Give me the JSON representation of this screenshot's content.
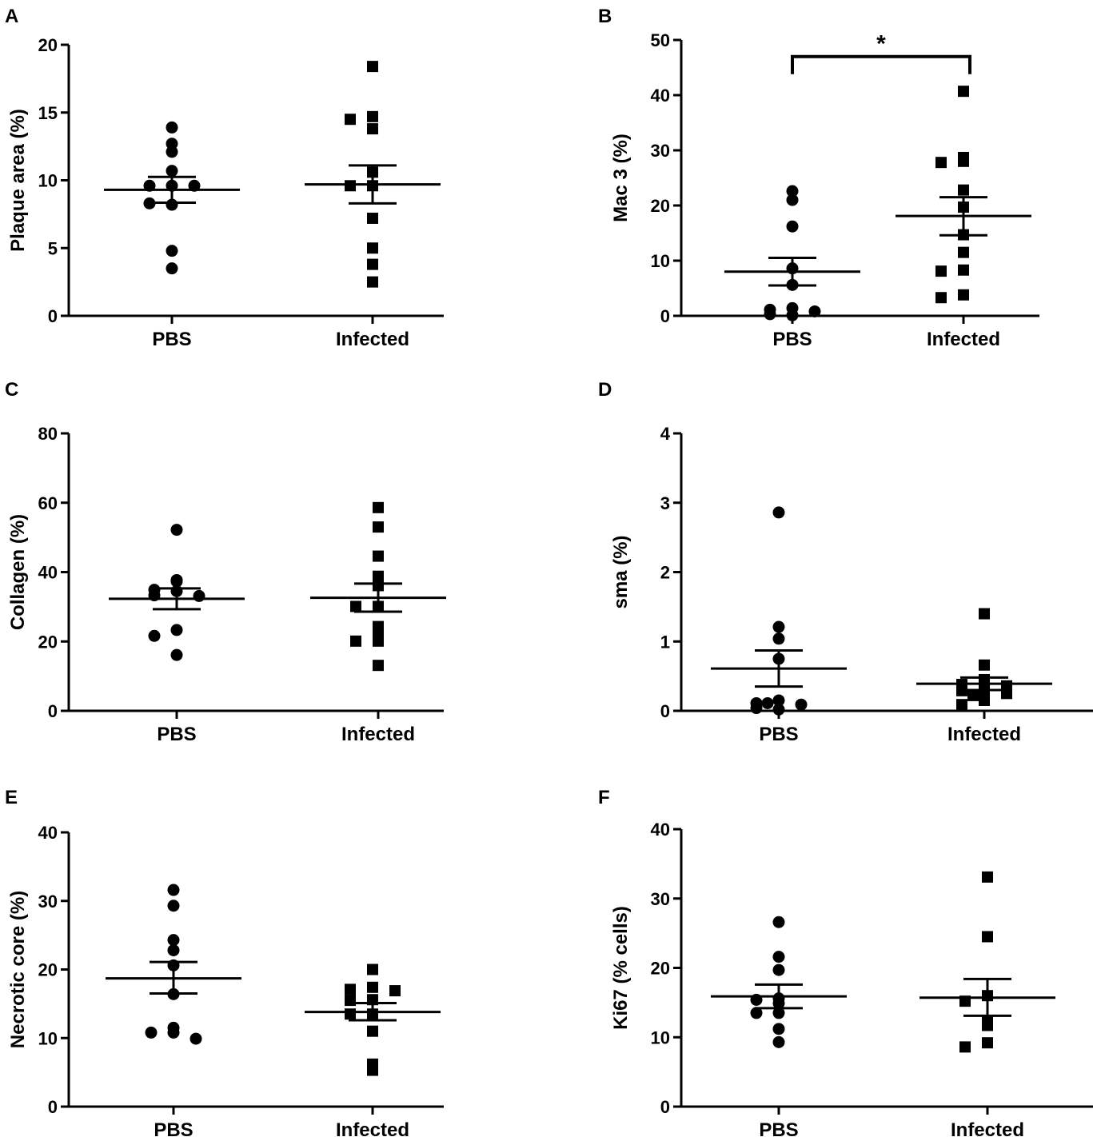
{
  "chart_data": [
    {
      "panel": "A",
      "type": "scatter",
      "ylabel": "Plaque area (%)",
      "ylim": [
        0,
        20
      ],
      "yticks": [
        0,
        5,
        10,
        15,
        20
      ],
      "categories": [
        "PBS",
        "Infected"
      ],
      "groups": [
        {
          "name": "PBS",
          "marker": "circle",
          "mean": 9.3,
          "sem_low": 8.35,
          "sem_high": 10.25,
          "points": [
            13.9,
            12.7,
            12.1,
            10.7,
            9.6,
            9.6,
            9.6,
            8.2,
            8.3,
            4.8,
            3.5
          ]
        },
        {
          "name": "Infected",
          "marker": "square",
          "mean": 9.7,
          "sem_low": 8.3,
          "sem_high": 11.1,
          "points": [
            18.4,
            14.7,
            14.5,
            13.8,
            10.6,
            9.6,
            9.6,
            7.2,
            5.0,
            3.8,
            2.5
          ]
        }
      ],
      "significance": null
    },
    {
      "panel": "B",
      "type": "scatter",
      "ylabel": "Mac 3 (%)",
      "ylim": [
        0,
        50
      ],
      "yticks": [
        0,
        10,
        20,
        30,
        40,
        50
      ],
      "categories": [
        "PBS",
        "Infected"
      ],
      "groups": [
        {
          "name": "PBS",
          "marker": "circle",
          "mean": 8.0,
          "sem_low": 5.5,
          "sem_high": 10.5,
          "points": [
            22.6,
            21.0,
            16.2,
            8.6,
            5.6,
            1.4,
            1.1,
            0.8,
            0.1,
            0.3
          ]
        },
        {
          "name": "Infected",
          "marker": "square",
          "mean": 18.1,
          "sem_low": 14.6,
          "sem_high": 21.5,
          "points": [
            40.7,
            28.7,
            28.0,
            27.8,
            22.8,
            19.7,
            14.7,
            11.5,
            8.3,
            8.1,
            3.8,
            3.3
          ]
        }
      ],
      "significance": {
        "label": "*",
        "from": "PBS",
        "to": "Infected",
        "y": 47.0
      }
    },
    {
      "panel": "C",
      "type": "scatter",
      "ylabel": "Collagen (%)",
      "ylim": [
        0,
        80
      ],
      "yticks": [
        0,
        20,
        40,
        60,
        80
      ],
      "categories": [
        "PBS",
        "Infected"
      ],
      "groups": [
        {
          "name": "PBS",
          "marker": "circle",
          "mean": 32.3,
          "sem_low": 29.3,
          "sem_high": 35.3,
          "points": [
            52.2,
            37.7,
            37.3,
            34.9,
            34.5,
            33.3,
            33.1,
            23.3,
            21.6,
            16.1
          ]
        },
        {
          "name": "Infected",
          "marker": "square",
          "mean": 32.6,
          "sem_low": 28.6,
          "sem_high": 36.7,
          "points": [
            58.6,
            53.0,
            44.6,
            38.8,
            36.1,
            30.1,
            30.1,
            24.3,
            22.7,
            20.1,
            20.1,
            13.1
          ]
        }
      ],
      "significance": null
    },
    {
      "panel": "D",
      "type": "scatter",
      "ylabel": "sma (%)",
      "ylim": [
        0,
        4
      ],
      "yticks": [
        0,
        1,
        2,
        3,
        4
      ],
      "categories": [
        "PBS",
        "Infected"
      ],
      "groups": [
        {
          "name": "PBS",
          "marker": "circle",
          "mean": 0.61,
          "sem_low": 0.35,
          "sem_high": 0.87,
          "points": [
            2.86,
            1.21,
            1.04,
            0.75,
            0.15,
            0.11,
            0.09,
            0.11,
            0.02,
            0.04
          ]
        },
        {
          "name": "Infected",
          "marker": "square",
          "mean": 0.39,
          "sem_low": 0.3,
          "sem_high": 0.48,
          "points": [
            1.4,
            0.66,
            0.45,
            0.38,
            0.36,
            0.3,
            0.29,
            0.25,
            0.22,
            0.15,
            0.09
          ]
        }
      ],
      "significance": null
    },
    {
      "panel": "E",
      "type": "scatter",
      "ylabel": "Necrotic core (%)",
      "ylim": [
        0,
        40
      ],
      "yticks": [
        0,
        10,
        20,
        30,
        40
      ],
      "categories": [
        "PBS",
        "Infected"
      ],
      "groups": [
        {
          "name": "PBS",
          "marker": "circle",
          "mean": 18.7,
          "sem_low": 16.5,
          "sem_high": 21.1,
          "points": [
            31.6,
            29.3,
            24.3,
            22.8,
            20.6,
            16.4,
            11.5,
            10.8,
            10.8,
            9.9
          ]
        },
        {
          "name": "Infected",
          "marker": "square",
          "mean": 13.8,
          "sem_low": 12.6,
          "sem_high": 15.1,
          "points": [
            20.0,
            17.4,
            17.1,
            16.9,
            15.6,
            15.5,
            13.5,
            13.5,
            11.0,
            6.2,
            5.3
          ]
        }
      ],
      "significance": null
    },
    {
      "panel": "F",
      "type": "scatter",
      "ylabel": "Ki67 (% cells)",
      "ylim": [
        0,
        40
      ],
      "yticks": [
        0,
        10,
        20,
        30,
        40
      ],
      "categories": [
        "PBS",
        "Infected"
      ],
      "groups": [
        {
          "name": "PBS",
          "marker": "circle",
          "mean": 15.9,
          "sem_low": 14.2,
          "sem_high": 17.6,
          "points": [
            26.6,
            21.6,
            19.7,
            15.6,
            15.4,
            14.9,
            13.5,
            13.5,
            11.2,
            9.3
          ]
        },
        {
          "name": "Infected",
          "marker": "square",
          "mean": 15.7,
          "sem_low": 13.1,
          "sem_high": 18.4,
          "points": [
            33.1,
            24.5,
            16.0,
            15.2,
            12.4,
            11.7,
            9.2,
            8.6
          ]
        }
      ],
      "significance": null
    }
  ],
  "colors": {
    "ink": "#000000",
    "background": "#ffffff"
  },
  "markers": {
    "PBS": "circle",
    "Infected": "square"
  }
}
